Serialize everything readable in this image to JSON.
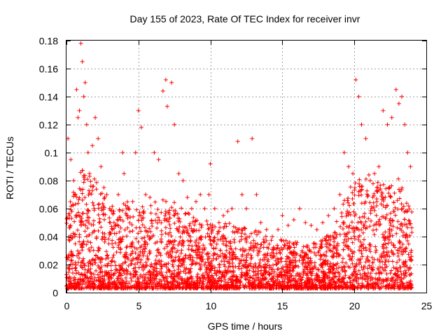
{
  "chart_data": {
    "type": "scatter",
    "title": "Day 155 of 2023, Rate Of TEC Index for receiver invr",
    "xlabel": "GPS time / hours",
    "ylabel": "ROTI / TECUs",
    "xlim": [
      0,
      25
    ],
    "ylim": [
      0,
      0.18
    ],
    "xticks": [
      "0",
      "5",
      "10",
      "15",
      "20",
      "25"
    ],
    "yticks": [
      "0",
      "0.02",
      "0.04",
      "0.06",
      "0.08",
      "0.1",
      "0.12",
      "0.14",
      "0.16",
      "0.18"
    ],
    "grid": true,
    "marker": "+",
    "color": "#ff0000",
    "series": [
      {
        "x": [
          0.1,
          0.3,
          0.5,
          0.7,
          0.8,
          0.9,
          1.0,
          1.1,
          1.2,
          1.3,
          1.4,
          1.5,
          1.6,
          1.8,
          2.0,
          2.2,
          2.4,
          2.6,
          2.8,
          3.0,
          3.3,
          3.6,
          3.9,
          4.0,
          4.3,
          4.6,
          4.8,
          5.0,
          5.2,
          5.5,
          5.8,
          6.1,
          6.4,
          6.7,
          6.9,
          7.0,
          7.3,
          7.5,
          7.8,
          8.1,
          8.4,
          8.7,
          9.0,
          9.3,
          9.6,
          9.9,
          10.0,
          10.3,
          10.6,
          10.9,
          11.2,
          11.5,
          11.9,
          12.2,
          12.5,
          12.9,
          13.2,
          13.5,
          13.9,
          14.3,
          14.7,
          15.0,
          15.4,
          15.8,
          16.2,
          16.6,
          17.0,
          17.4,
          17.8,
          18.2,
          18.6,
          19.0,
          19.3,
          19.6,
          19.9,
          20.1,
          20.3,
          20.5,
          20.8,
          21.1,
          21.4,
          21.7,
          22.0,
          22.3,
          22.6,
          22.9,
          23.1,
          23.3,
          23.5,
          23.7,
          23.9
        ],
        "y": [
          0.11,
          0.095,
          0.08,
          0.145,
          0.125,
          0.13,
          0.178,
          0.165,
          0.14,
          0.15,
          0.12,
          0.1,
          0.085,
          0.105,
          0.125,
          0.11,
          0.09,
          0.075,
          0.07,
          0.06,
          0.05,
          0.07,
          0.1,
          0.085,
          0.06,
          0.065,
          0.1,
          0.13,
          0.118,
          0.07,
          0.068,
          0.1,
          0.095,
          0.144,
          0.152,
          0.133,
          0.15,
          0.12,
          0.085,
          0.08,
          0.068,
          0.06,
          0.065,
          0.07,
          0.06,
          0.07,
          0.092,
          0.06,
          0.05,
          0.055,
          0.058,
          0.06,
          0.108,
          0.07,
          0.06,
          0.11,
          0.07,
          0.05,
          0.045,
          0.04,
          0.045,
          0.055,
          0.048,
          0.052,
          0.06,
          0.05,
          0.048,
          0.045,
          0.05,
          0.055,
          0.06,
          0.07,
          0.1,
          0.09,
          0.085,
          0.152,
          0.14,
          0.12,
          0.11,
          0.08,
          0.085,
          0.09,
          0.13,
          0.12,
          0.125,
          0.145,
          0.135,
          0.14,
          0.12,
          0.1,
          0.09
        ]
      }
    ]
  }
}
